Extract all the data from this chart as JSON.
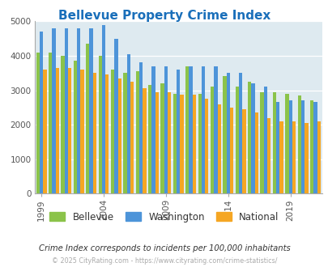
{
  "title": "Bellevue Property Crime Index",
  "years": [
    1999,
    2000,
    2001,
    2002,
    2003,
    2004,
    2005,
    2006,
    2007,
    2008,
    2009,
    2010,
    2011,
    2012,
    2013,
    2014,
    2015,
    2016,
    2017,
    2018,
    2019,
    2020,
    2021
  ],
  "bellevue": [
    4100,
    4100,
    4000,
    3850,
    4350,
    4000,
    3600,
    3500,
    3550,
    3150,
    3200,
    2900,
    3700,
    2900,
    3100,
    3420,
    3100,
    3250,
    2950,
    2950,
    2900,
    2850,
    2700
  ],
  "washington": [
    4700,
    4800,
    4800,
    4800,
    4800,
    4900,
    4500,
    4050,
    3800,
    3700,
    3700,
    3600,
    3700,
    3700,
    3700,
    3500,
    3500,
    3200,
    3100,
    2650,
    2700,
    2700,
    2650
  ],
  "national": [
    3600,
    3650,
    3650,
    3600,
    3500,
    3450,
    3350,
    3250,
    3050,
    2950,
    2950,
    2870,
    2880,
    2760,
    2600,
    2500,
    2450,
    2350,
    2200,
    2100,
    2100,
    2050,
    2100
  ],
  "colors": {
    "bellevue": "#8bc34a",
    "washington": "#4d94d9",
    "national": "#f5a623"
  },
  "ylim": [
    0,
    5000
  ],
  "yticks": [
    0,
    1000,
    2000,
    3000,
    4000,
    5000
  ],
  "xlabel_ticks": [
    1999,
    2004,
    2009,
    2014,
    2019
  ],
  "bg_color": "#deeaf0",
  "subtitle": "Crime Index corresponds to incidents per 100,000 inhabitants",
  "footer": "© 2025 CityRating.com - https://www.cityrating.com/crime-statistics/",
  "legend_labels": [
    "Bellevue",
    "Washington",
    "National"
  ],
  "bar_width": 0.28
}
